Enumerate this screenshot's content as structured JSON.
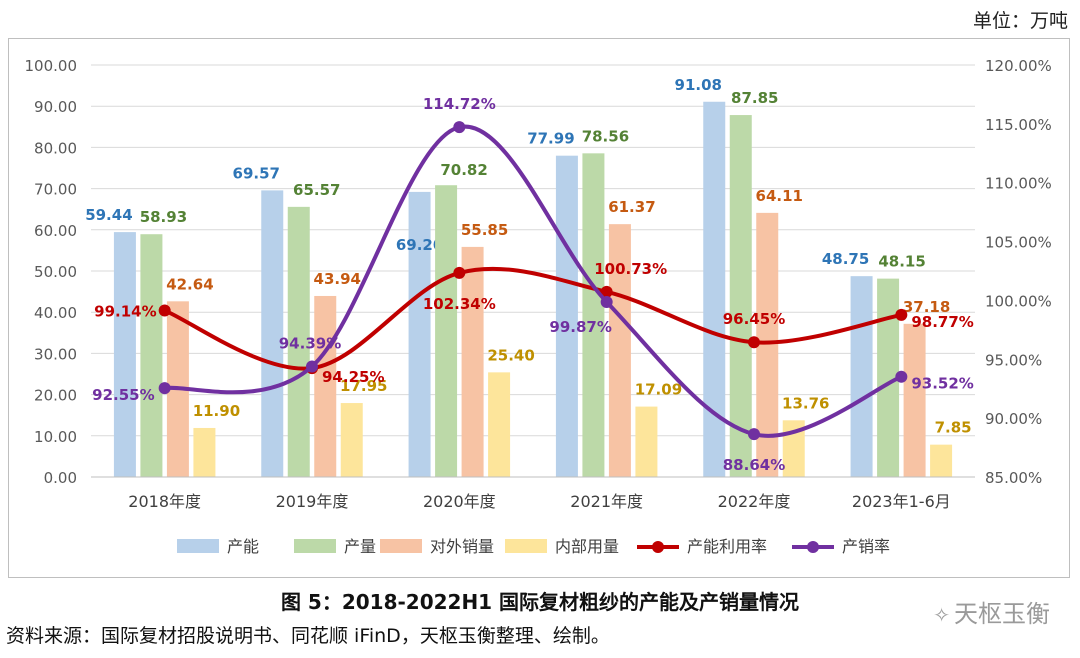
{
  "unit_label": "单位：万吨",
  "caption": "图 5：2018-2022H1 国际复材粗纱的产能及产销量情况",
  "source": "资料来源：国际复材招股说明书、同花顺 iFinD，天枢玉衡整理、绘制。",
  "watermark": "天枢玉衡",
  "colors": {
    "capacity": "#b7d0ea",
    "output": "#bcd9a8",
    "external_sales": "#f7c3a4",
    "internal_use": "#fde59b",
    "capacity_label": "#2e75b6",
    "output_label": "#548235",
    "external_label": "#c55a11",
    "internal_label": "#bf9000",
    "utilization": "#c00000",
    "sales_rate": "#7030a0"
  },
  "chart_data": {
    "type": "bar+line",
    "categories": [
      "2018年度",
      "2019年度",
      "2020年度",
      "2021年度",
      "2022年度",
      "2023年1-6月"
    ],
    "y_left": {
      "min": 0,
      "max": 100,
      "step": 10,
      "ticks": [
        "0.00",
        "10.00",
        "20.00",
        "30.00",
        "40.00",
        "50.00",
        "60.00",
        "70.00",
        "80.00",
        "90.00",
        "100.00"
      ]
    },
    "y_right": {
      "min": 85,
      "max": 120,
      "step": 5,
      "ticks": [
        "85.00%",
        "90.00%",
        "95.00%",
        "100.00%",
        "105.00%",
        "110.00%",
        "115.00%",
        "120.00%"
      ]
    },
    "bar_series": [
      {
        "name": "产能",
        "values": [
          59.44,
          69.57,
          69.2,
          77.99,
          91.08,
          48.75
        ],
        "labels": [
          "59.44",
          "69.57",
          "69.20",
          "77.99",
          "91.08",
          "48.75"
        ]
      },
      {
        "name": "产量",
        "values": [
          58.93,
          65.57,
          70.82,
          78.56,
          87.85,
          48.15
        ],
        "labels": [
          "58.93",
          "65.57",
          "70.82",
          "78.56",
          "87.85",
          "48.15"
        ]
      },
      {
        "name": "对外销量",
        "values": [
          42.64,
          43.94,
          55.85,
          61.37,
          64.11,
          37.18
        ],
        "labels": [
          "42.64",
          "43.94",
          "55.85",
          "61.37",
          "64.11",
          "37.18"
        ]
      },
      {
        "name": "内部用量",
        "values": [
          11.9,
          17.95,
          25.4,
          17.09,
          13.76,
          7.85
        ],
        "labels": [
          "11.90",
          "17.95",
          "25.40",
          "17.09",
          "13.76",
          "7.85"
        ]
      }
    ],
    "line_series": [
      {
        "name": "产能利用率",
        "values": [
          99.14,
          94.25,
          102.34,
          100.73,
          96.45,
          98.77
        ],
        "labels": [
          "99.14%",
          "94.25%",
          "102.34%",
          "100.73%",
          "96.45%",
          "98.77%"
        ]
      },
      {
        "name": "产销率",
        "values": [
          92.55,
          94.39,
          114.72,
          99.87,
          88.64,
          93.52
        ],
        "labels": [
          "92.55%",
          "94.39%",
          "114.72%",
          "99.87%",
          "88.64%",
          "93.52%"
        ]
      }
    ],
    "legend": [
      "产能",
      "产量",
      "对外销量",
      "内部用量",
      "产能利用率",
      "产销率"
    ],
    "legend_position": "bottom"
  }
}
